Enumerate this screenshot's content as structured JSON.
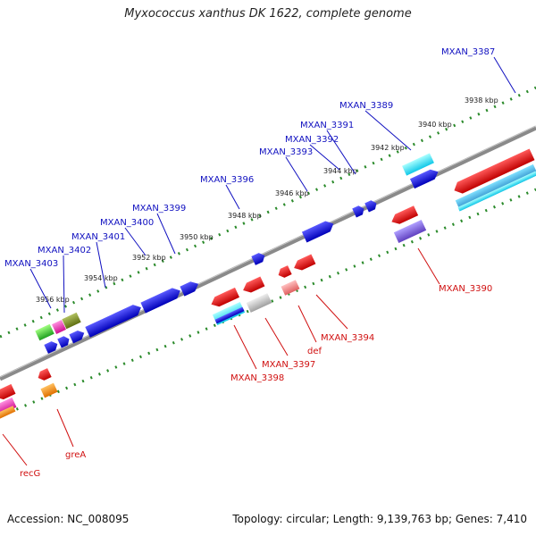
{
  "title": "Myxococcus xanthus DK 1622, complete genome",
  "footer": {
    "accession": "Accession: NC_008095",
    "summary": "Topology: circular; Length: 9,139,763 bp; Genes: 7,410"
  },
  "colors": {
    "forward_gene": "#1010d8",
    "reverse_gene": "#e81010",
    "backbone": "#8a8a8a",
    "ruler_dots": "#2a8a2a",
    "forward_label": "#1010c0",
    "reverse_label": "#d01010"
  },
  "scale_ticks": [
    "3956 kbp",
    "3954 kbp",
    "3952 kbp",
    "3950 kbp",
    "3948 kbp",
    "3946 kbp",
    "3944 kbp",
    "3942 kbp",
    "3940 kbp",
    "3938 kbp"
  ],
  "forward_labels": [
    "MXAN_3403",
    "MXAN_3402",
    "MXAN_3401",
    "MXAN_3400",
    "MXAN_3399",
    "MXAN_3396",
    "MXAN_3393",
    "MXAN_3392",
    "MXAN_3391",
    "MXAN_3389",
    "MXAN_3387"
  ],
  "reverse_labels": [
    "recG",
    "greA",
    "MXAN_3398",
    "MXAN_3397",
    "def",
    "MXAN_3394",
    "MXAN_3390"
  ]
}
